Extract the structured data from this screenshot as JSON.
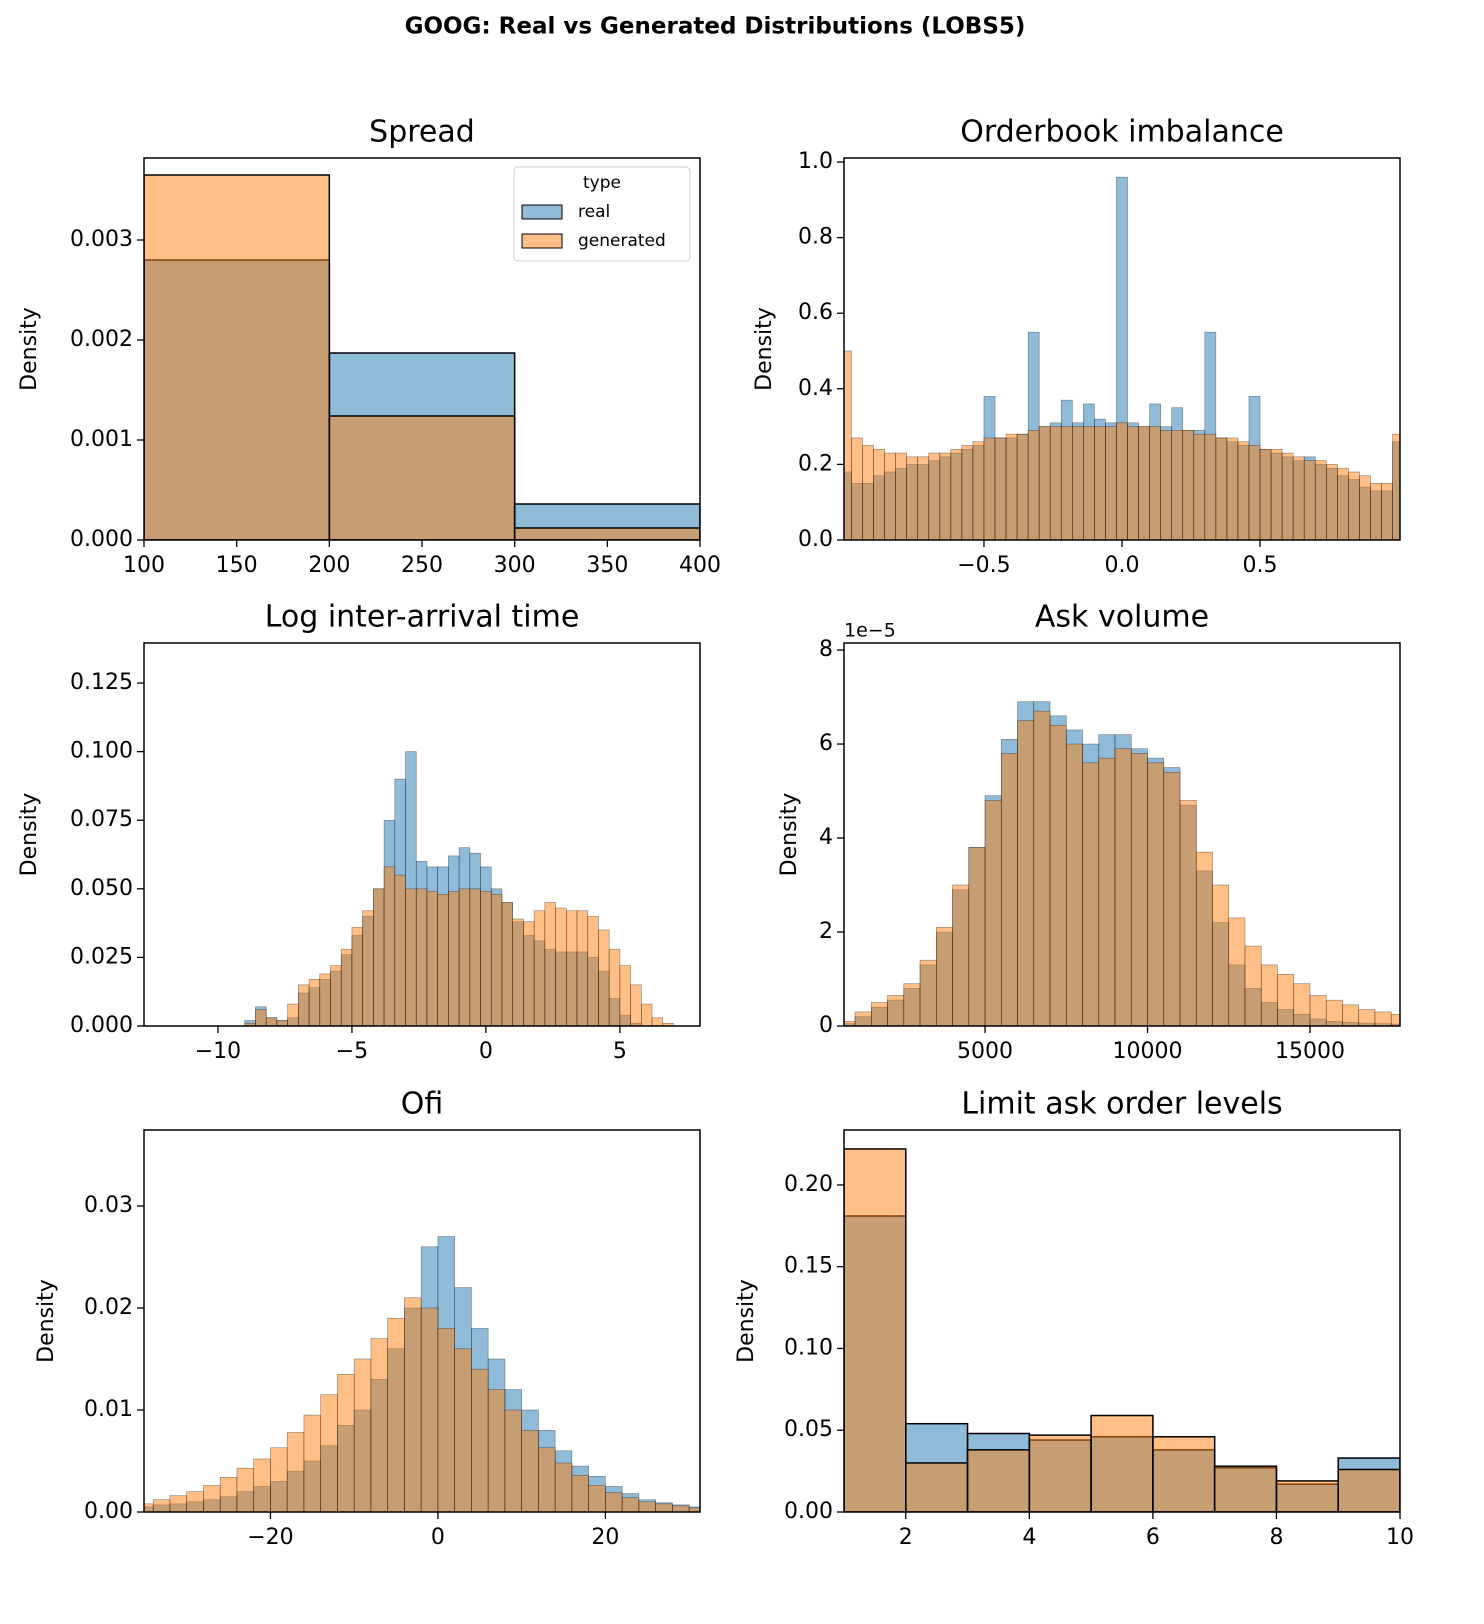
{
  "title": "GOOG: Real vs Generated Distributions (LOBS5)",
  "chart_data": [
    {
      "type": "histogram",
      "title": "Spread",
      "y_label": "Density",
      "legend": "upper right",
      "legend_title": "type",
      "bins": [
        100,
        200,
        300,
        400
      ],
      "series": [
        {
          "name": "real",
          "color": "#1f77b4",
          "values": [
            0.0028,
            0.00187,
            0.00036
          ]
        },
        {
          "name": "generated",
          "color": "#ff7f0e",
          "values": [
            0.00365,
            0.00124,
            0.00012
          ]
        }
      ],
      "xlim": [
        100,
        400
      ],
      "ylim": [
        0,
        0.00382
      ],
      "xticks": [
        100,
        150,
        200,
        250,
        300,
        350,
        400
      ],
      "yticks": [
        {
          "value": 0,
          "label": "0.000"
        },
        0.001,
        0.002,
        0.003
      ]
    },
    {
      "type": "histogram",
      "title": "Orderbook imbalance",
      "y_label": "Density",
      "bins": [
        -1.02,
        -0.98,
        -0.94,
        -0.9,
        -0.86,
        -0.82,
        -0.78,
        -0.74,
        -0.7,
        -0.66,
        -0.62,
        -0.58,
        -0.54,
        -0.5,
        -0.46,
        -0.42,
        -0.38,
        -0.34,
        -0.3,
        -0.26,
        -0.22,
        -0.18,
        -0.14,
        -0.1,
        -0.06,
        -0.02,
        0.02,
        0.06,
        0.1,
        0.14,
        0.18,
        0.22,
        0.26,
        0.3,
        0.34,
        0.38,
        0.42,
        0.46,
        0.5,
        0.54,
        0.58,
        0.62,
        0.66,
        0.7,
        0.74,
        0.78,
        0.82,
        0.86,
        0.9,
        0.94,
        0.98,
        1.02
      ],
      "series": [
        {
          "color": "#1f77b4",
          "values": [
            0.18,
            0.15,
            0.15,
            0.17,
            0.18,
            0.19,
            0.2,
            0.2,
            0.21,
            0.22,
            0.23,
            0.24,
            0.25,
            0.38,
            0.27,
            0.27,
            0.28,
            0.55,
            0.3,
            0.31,
            0.37,
            0.31,
            0.36,
            0.32,
            0.31,
            0.96,
            0.31,
            0.3,
            0.36,
            0.3,
            0.35,
            0.29,
            0.29,
            0.55,
            0.27,
            0.26,
            0.25,
            0.38,
            0.24,
            0.23,
            0.22,
            0.21,
            0.22,
            0.2,
            0.19,
            0.17,
            0.16,
            0.14,
            0.13,
            0.13,
            0.26
          ]
        },
        {
          "color": "#ff7f0e",
          "values": [
            0.5,
            0.27,
            0.25,
            0.24,
            0.23,
            0.23,
            0.22,
            0.22,
            0.23,
            0.23,
            0.24,
            0.25,
            0.26,
            0.27,
            0.27,
            0.28,
            0.28,
            0.29,
            0.3,
            0.3,
            0.3,
            0.3,
            0.3,
            0.3,
            0.3,
            0.31,
            0.3,
            0.3,
            0.3,
            0.29,
            0.29,
            0.29,
            0.28,
            0.28,
            0.27,
            0.27,
            0.26,
            0.25,
            0.24,
            0.24,
            0.23,
            0.22,
            0.21,
            0.21,
            0.2,
            0.19,
            0.18,
            0.17,
            0.15,
            0.15,
            0.28
          ]
        }
      ],
      "xlim": [
        -1.007,
        1.007
      ],
      "ylim": [
        0,
        1.0106
      ],
      "xticks": [
        {
          "value": -0.5,
          "label": "−0.5"
        },
        {
          "value": 0,
          "label": "0.0"
        },
        0.5
      ],
      "yticks": [
        {
          "value": 0,
          "label": "0.0"
        },
        0.2,
        0.4,
        0.6,
        0.8,
        {
          "value": 1,
          "label": "1.0"
        }
      ]
    },
    {
      "type": "histogram",
      "title": "Log inter-arrival time",
      "y_label": "Density",
      "bins": [
        -9,
        -8.6,
        -8.2,
        -7.8,
        -7.4,
        -7,
        -6.6,
        -6.2,
        -5.8,
        -5.4,
        -5,
        -4.6,
        -4.2,
        -3.8,
        -3.4,
        -3,
        -2.6,
        -2.2,
        -1.8,
        -1.4,
        -1,
        -0.6,
        -0.2,
        0.2,
        0.6,
        1,
        1.4,
        1.8,
        2.2,
        2.6,
        3,
        3.4,
        3.8,
        4.2,
        4.6,
        5,
        5.4,
        5.8,
        6.2,
        6.6,
        7,
        7.4
      ],
      "series": [
        {
          "color": "#1f77b4",
          "values": [
            0.002,
            0.007,
            0.003,
            0.002,
            0.003,
            0.012,
            0.014,
            0.017,
            0.02,
            0.026,
            0.033,
            0.04,
            0.05,
            0.075,
            0.09,
            0.1,
            0.06,
            0.058,
            0.058,
            0.062,
            0.065,
            0.063,
            0.058,
            0.05,
            0.045,
            0.038,
            0.033,
            0.031,
            0.028,
            0.027,
            0.027,
            0.027,
            0.025,
            0.02,
            0.01,
            0.004,
            0.001,
            0,
            0,
            0,
            0
          ]
        },
        {
          "color": "#ff7f0e",
          "values": [
            0.001,
            0.006,
            0.003,
            0.002,
            0.008,
            0.015,
            0.017,
            0.019,
            0.022,
            0.028,
            0.036,
            0.042,
            0.05,
            0.058,
            0.055,
            0.05,
            0.05,
            0.049,
            0.048,
            0.049,
            0.05,
            0.05,
            0.049,
            0.048,
            0.045,
            0.039,
            0.038,
            0.042,
            0.045,
            0.043,
            0.042,
            0.042,
            0.04,
            0.035,
            0.028,
            0.022,
            0.015,
            0.008,
            0.003,
            0.001,
            0
          ]
        }
      ],
      "xlim": [
        -12.76,
        7.99
      ],
      "ylim": [
        0,
        0.1396
      ],
      "xticks": [
        {
          "value": -10,
          "label": "−10"
        },
        {
          "value": -5,
          "label": "−5"
        },
        0,
        5
      ],
      "yticks": [
        {
          "value": 0,
          "label": "0.000"
        },
        0.025,
        {
          "value": 0.05,
          "label": "0.050"
        },
        0.075,
        {
          "value": 0.1,
          "label": "0.100"
        },
        0.125
      ]
    },
    {
      "type": "histogram",
      "title": "Ask volume",
      "y_label": "Density",
      "y_offset_label": "1e−5",
      "bins": [
        500,
        1000,
        1500,
        2000,
        2500,
        3000,
        3500,
        4000,
        4500,
        5000,
        5500,
        6000,
        6500,
        7000,
        7500,
        8000,
        8500,
        9000,
        9500,
        10000,
        10500,
        11000,
        11500,
        12000,
        12500,
        13000,
        13500,
        14000,
        14500,
        15000,
        15500,
        16000,
        16500,
        17000,
        17500,
        18000
      ],
      "series": [
        {
          "color": "#1f77b4",
          "values": [
            5e-07,
            2e-06,
            4e-06,
            5.5e-06,
            8e-06,
            1.3e-05,
            2e-05,
            2.9e-05,
            3.8e-05,
            4.9e-05,
            6.1e-05,
            6.9e-05,
            6.9e-05,
            6.6e-05,
            6.3e-05,
            6e-05,
            6.2e-05,
            6.2e-05,
            5.9e-05,
            5.7e-05,
            5.5e-05,
            4.7e-05,
            3.3e-05,
            2.2e-05,
            1.3e-05,
            8e-06,
            5e-06,
            3.5e-06,
            2.5e-06,
            1.5e-06,
            1e-06,
            8e-07,
            6e-07,
            5e-07,
            4e-07
          ]
        },
        {
          "color": "#ff7f0e",
          "values": [
            1e-06,
            3e-06,
            5e-06,
            6.5e-06,
            9e-06,
            1.4e-05,
            2.1e-05,
            3e-05,
            3.8e-05,
            4.8e-05,
            5.8e-05,
            6.5e-05,
            6.7e-05,
            6.4e-05,
            6e-05,
            5.6e-05,
            5.7e-05,
            5.9e-05,
            5.8e-05,
            5.6e-05,
            5.4e-05,
            4.8e-05,
            3.7e-05,
            3e-05,
            2.3e-05,
            1.7e-05,
            1.3e-05,
            1.1e-05,
            9e-06,
            6.5e-06,
            5.5e-06,
            4.5e-06,
            3.5e-06,
            3e-06,
            2.5e-06
          ]
        }
      ],
      "xlim": [
        660,
        17770
      ],
      "ylim": [
        0,
        8.15e-05
      ],
      "xticks": [
        5000,
        10000,
        15000
      ],
      "yticks": [
        0,
        {
          "value": 2e-05,
          "label": "2"
        },
        {
          "value": 4e-05,
          "label": "4"
        },
        {
          "value": 6e-05,
          "label": "6"
        },
        {
          "value": 8e-05,
          "label": "8"
        }
      ]
    },
    {
      "type": "histogram",
      "title": "Ofi",
      "y_label": "Density",
      "bins": [
        -36,
        -34,
        -32,
        -30,
        -28,
        -26,
        -24,
        -22,
        -20,
        -18,
        -16,
        -14,
        -12,
        -10,
        -8,
        -6,
        -4,
        -2,
        0,
        2,
        4,
        6,
        8,
        10,
        12,
        14,
        16,
        18,
        20,
        22,
        24,
        26,
        28,
        30,
        32
      ],
      "series": [
        {
          "color": "#1f77b4",
          "values": [
            0.0005,
            0.0007,
            0.0008,
            0.001,
            0.0012,
            0.0015,
            0.002,
            0.0025,
            0.003,
            0.004,
            0.005,
            0.0065,
            0.0085,
            0.01,
            0.013,
            0.016,
            0.02,
            0.026,
            0.027,
            0.022,
            0.018,
            0.015,
            0.012,
            0.01,
            0.008,
            0.006,
            0.0045,
            0.0035,
            0.0025,
            0.0018,
            0.0012,
            0.0009,
            0.0007,
            0.0005
          ]
        },
        {
          "color": "#ff7f0e",
          "values": [
            0.0008,
            0.0012,
            0.0016,
            0.002,
            0.0026,
            0.0034,
            0.0043,
            0.0052,
            0.0063,
            0.0078,
            0.0095,
            0.0115,
            0.0135,
            0.015,
            0.017,
            0.019,
            0.021,
            0.02,
            0.018,
            0.016,
            0.014,
            0.012,
            0.01,
            0.008,
            0.0063,
            0.0048,
            0.0036,
            0.0026,
            0.0019,
            0.0014,
            0.001,
            0.0008,
            0.0006,
            0.0004
          ]
        }
      ],
      "xlim": [
        -35.1,
        31.3
      ],
      "ylim": [
        0,
        0.03745
      ],
      "xticks": [
        {
          "value": -20,
          "label": "−20"
        },
        0,
        20
      ],
      "yticks": [
        {
          "value": 0,
          "label": "0.00"
        },
        0.01,
        0.02,
        0.03
      ]
    },
    {
      "type": "histogram",
      "title": "Limit ask order levels",
      "y_label": "Density",
      "bins": [
        1,
        2,
        3,
        4,
        5,
        6,
        7,
        8,
        9,
        10
      ],
      "series": [
        {
          "color": "#1f77b4",
          "values": [
            0.181,
            0.054,
            0.048,
            0.044,
            0.046,
            0.038,
            0.027,
            0.017,
            0.033
          ]
        },
        {
          "color": "#ff7f0e",
          "values": [
            0.222,
            0.03,
            0.038,
            0.047,
            0.059,
            0.046,
            0.028,
            0.019,
            0.026
          ]
        }
      ],
      "xlim": [
        1,
        10
      ],
      "ylim": [
        0,
        0.2336
      ],
      "xticks": [
        2,
        4,
        6,
        8,
        10
      ],
      "yticks": [
        {
          "value": 0,
          "label": "0.00"
        },
        0.05,
        {
          "value": 0.1,
          "label": "0.10"
        },
        0.15,
        {
          "value": 0.2,
          "label": "0.20"
        }
      ]
    }
  ]
}
